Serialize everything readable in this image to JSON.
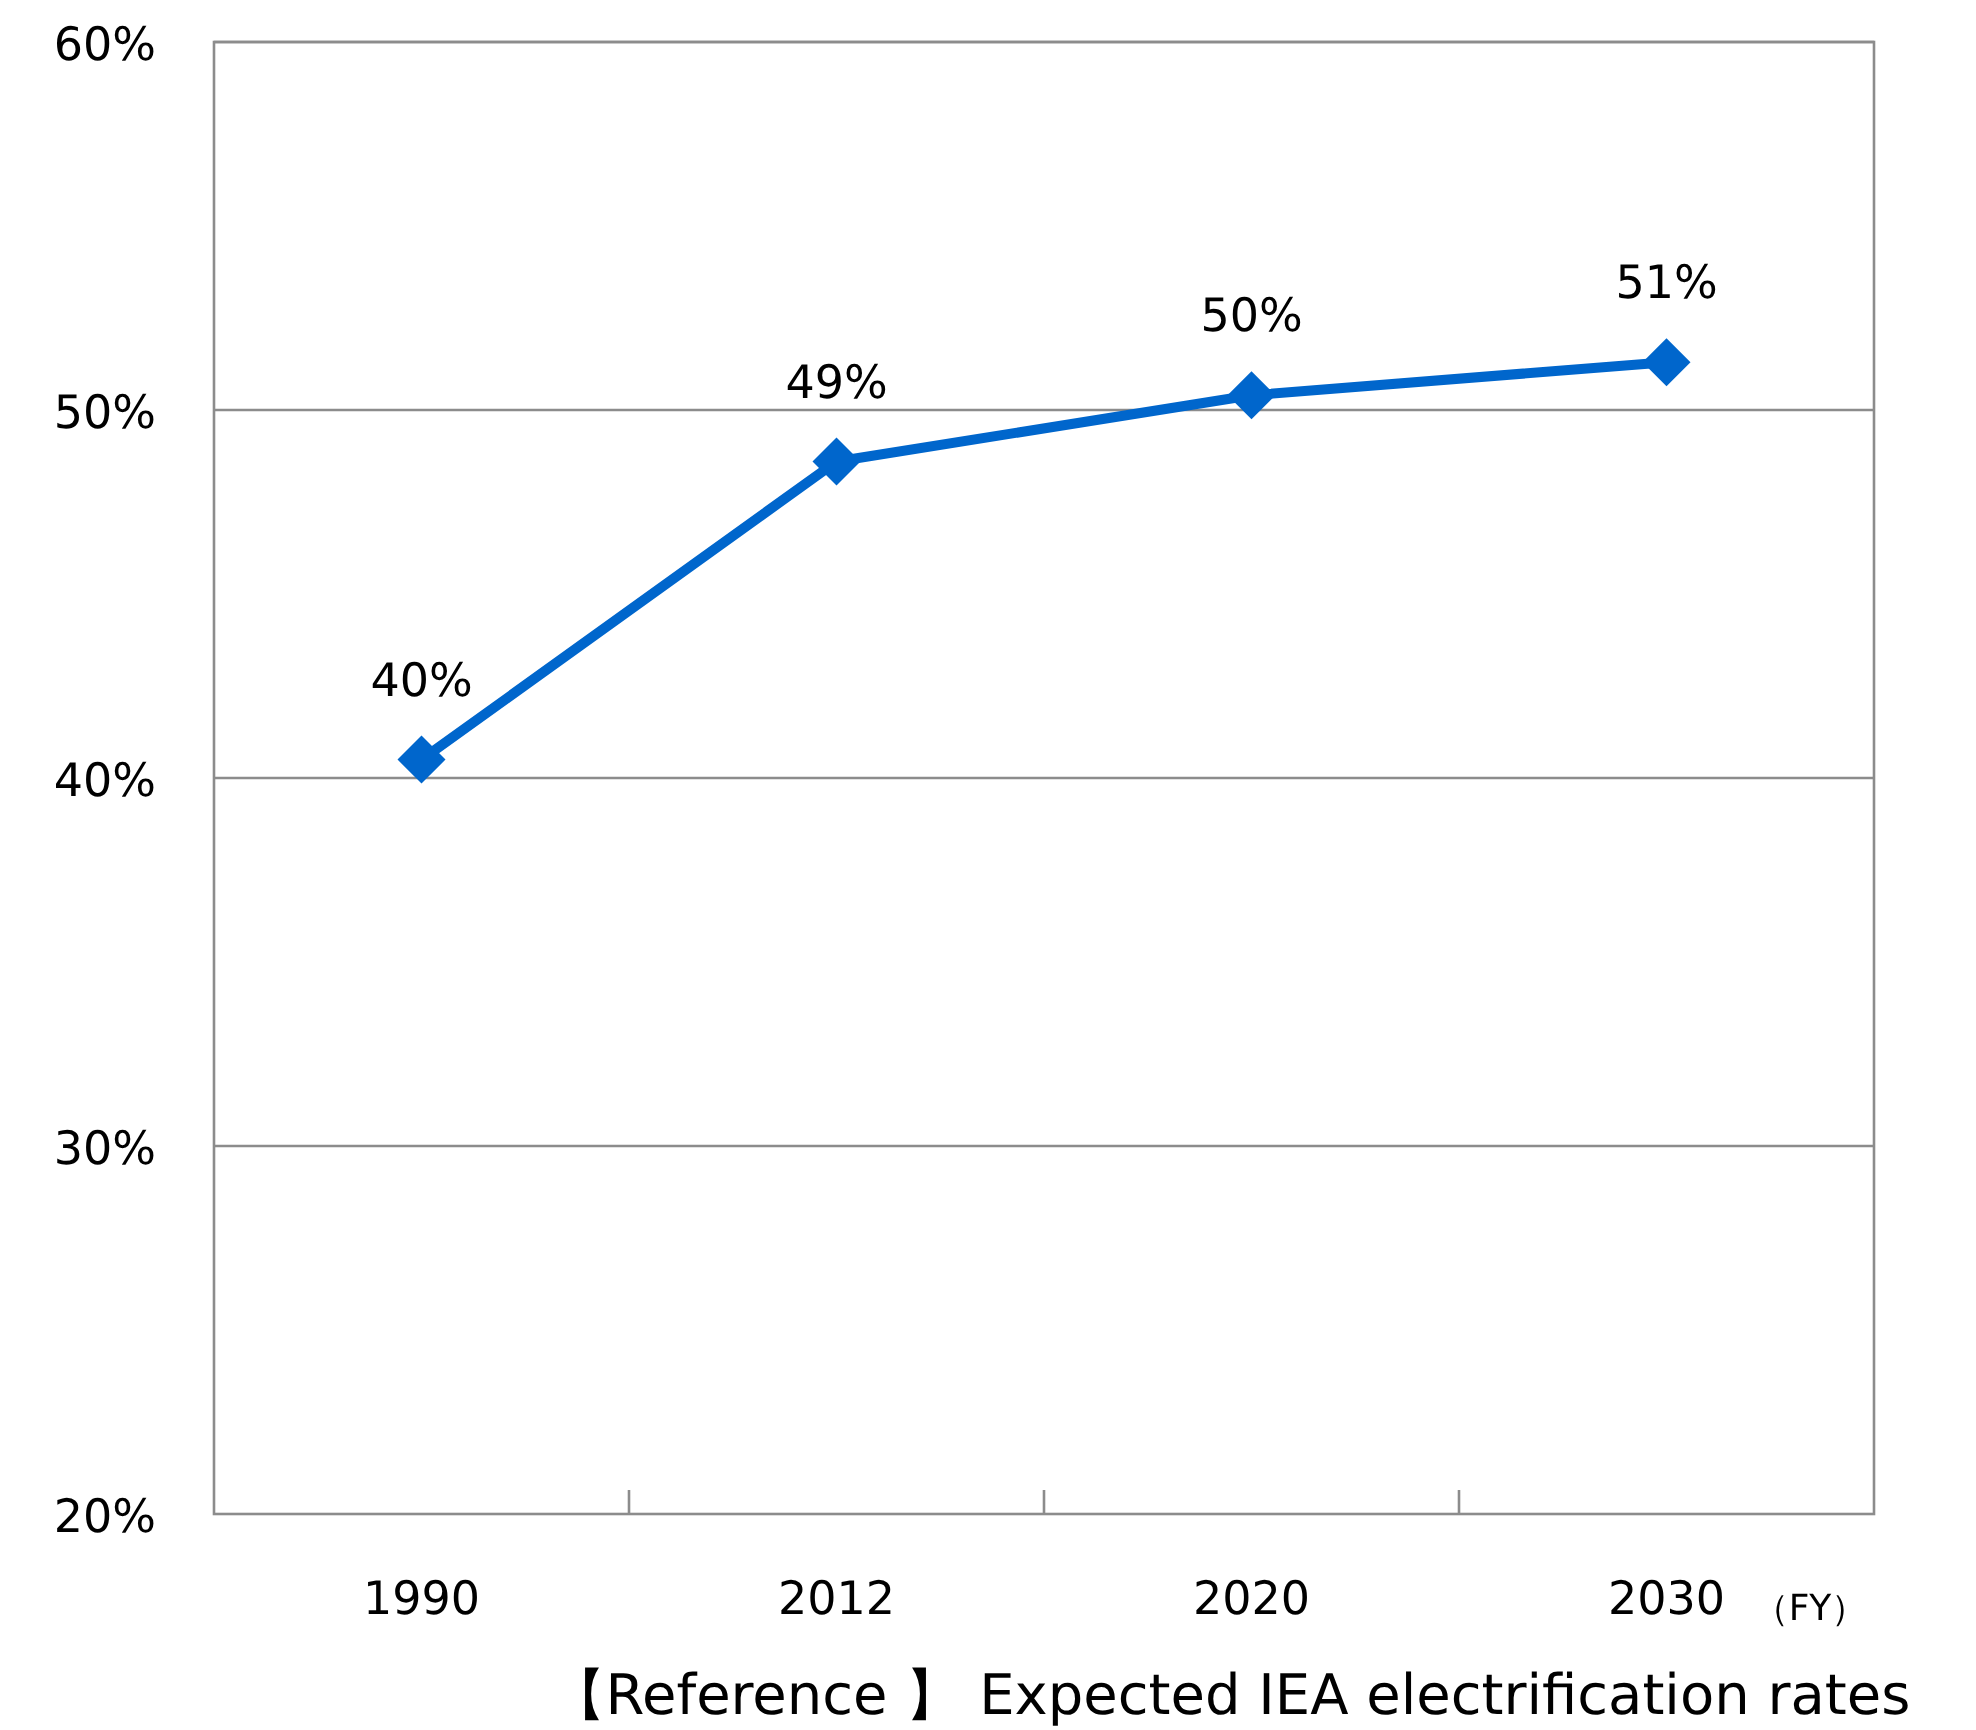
{
  "chart_data": {
    "type": "line",
    "title": "【Reference 】 Expected IEA electrification rates",
    "annotations": [
      "（FY）"
    ],
    "categories": [
      "1990",
      "2012",
      "2020",
      "2030"
    ],
    "series": [
      {
        "color": "#0066cc",
        "values": [
          40.5,
          48.6,
          50.4,
          51.3
        ],
        "value_labels": [
          "40%",
          "49%",
          "50%",
          "51%"
        ]
      }
    ],
    "ylim": [
      20,
      60
    ],
    "yticks": [
      {
        "value": 20,
        "label": "20%"
      },
      {
        "value": 30,
        "label": "30%"
      },
      {
        "value": 40,
        "label": "40%"
      },
      {
        "value": 50,
        "label": "50%"
      },
      {
        "value": 60,
        "label": "60%"
      }
    ],
    "grid": "y",
    "marker": "diamond"
  }
}
